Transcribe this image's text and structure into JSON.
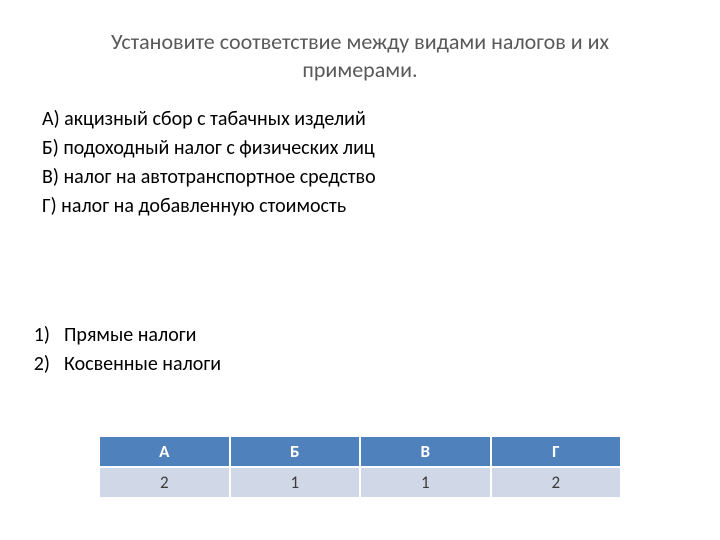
{
  "title": "Установите соответствие между видами налогов и их примерами.",
  "examples": [
    "А) акцизный сбор с табачных изделий",
    "Б) подоходный налог с физических лиц",
    "В) налог на автотранспортное средство",
    "Г) налог на добавленную стоимость"
  ],
  "categories": [
    {
      "num": "1)",
      "text": "Прямые налоги"
    },
    {
      "num": "2)",
      "text": "Косвенные налоги"
    }
  ],
  "table": {
    "headers": [
      "А",
      "Б",
      "В",
      "Г"
    ],
    "row": [
      "2",
      "1",
      "1",
      "2"
    ],
    "header_bg": "#4f81bd",
    "header_fg": "#ffffff",
    "cell_bg": "#d0d8e8",
    "cell_fg": "#3b3b3b",
    "border_color": "#ffffff"
  },
  "background_color": "#ffffff",
  "text_color": "#000000",
  "title_color": "#595959",
  "fontsize_title": 22,
  "fontsize_body": 20,
  "fontsize_table": 17
}
